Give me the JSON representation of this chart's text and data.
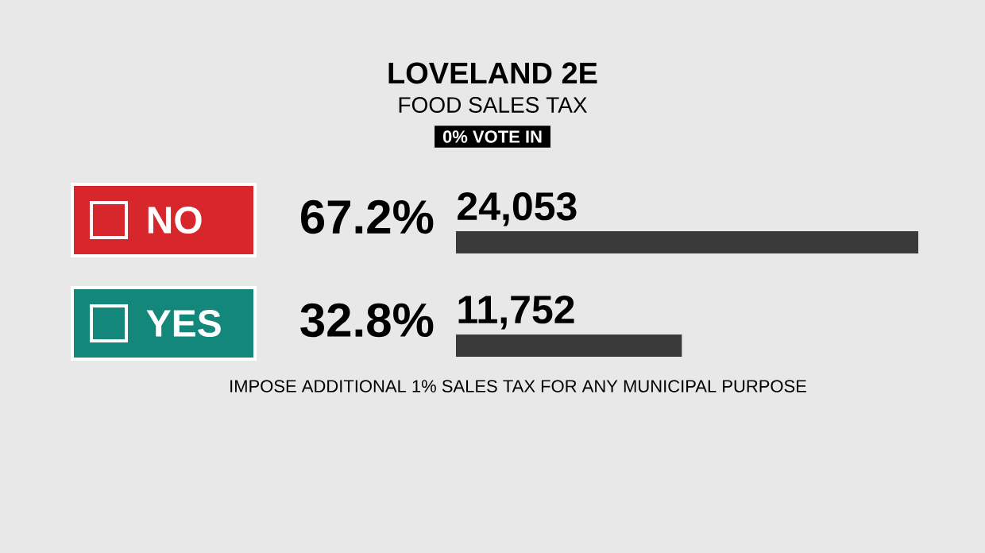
{
  "chart_data": {
    "type": "bar",
    "orientation": "horizontal",
    "title": "LOVELAND 2E",
    "subtitle": "FOOD SALES TAX",
    "categories": [
      "NO",
      "YES"
    ],
    "values": [
      24053,
      11752
    ],
    "colors": [
      "#3a3a3a",
      "#3a3a3a"
    ],
    "value_labels": [
      "24,053",
      "11,752"
    ],
    "annotations": [
      "0% VOTE IN",
      "67.2%",
      "32.8%",
      "IMPOSE ADDITIONAL 1% SALES TAX FOR ANY MUNICIPAL PURPOSE"
    ]
  }
}
